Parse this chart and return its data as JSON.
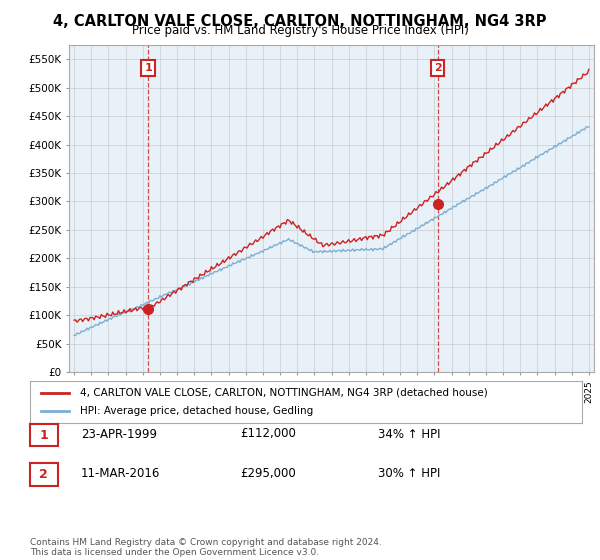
{
  "title": "4, CARLTON VALE CLOSE, CARLTON, NOTTINGHAM, NG4 3RP",
  "subtitle": "Price paid vs. HM Land Registry's House Price Index (HPI)",
  "ytick_values": [
    0,
    50000,
    100000,
    150000,
    200000,
    250000,
    300000,
    350000,
    400000,
    450000,
    500000,
    550000
  ],
  "ylim": [
    0,
    575000
  ],
  "xlim_start": 1994.7,
  "xlim_end": 2025.3,
  "sale1_date": 1999.31,
  "sale1_price": 112000,
  "sale1_label": "1",
  "sale2_date": 2016.19,
  "sale2_price": 295000,
  "sale2_label": "2",
  "hpi_color": "#7bafd4",
  "price_color": "#cc2222",
  "chart_bg": "#e8f0f8",
  "legend_price_label": "4, CARLTON VALE CLOSE, CARLTON, NOTTINGHAM, NG4 3RP (detached house)",
  "legend_hpi_label": "HPI: Average price, detached house, Gedling",
  "annotation1_date": "23-APR-1999",
  "annotation1_price": "£112,000",
  "annotation1_hpi": "34% ↑ HPI",
  "annotation2_date": "11-MAR-2016",
  "annotation2_price": "£295,000",
  "annotation2_hpi": "30% ↑ HPI",
  "footer": "Contains HM Land Registry data © Crown copyright and database right 2024.\nThis data is licensed under the Open Government Licence v3.0.",
  "background_color": "#ffffff",
  "grid_color": "#cccccc"
}
